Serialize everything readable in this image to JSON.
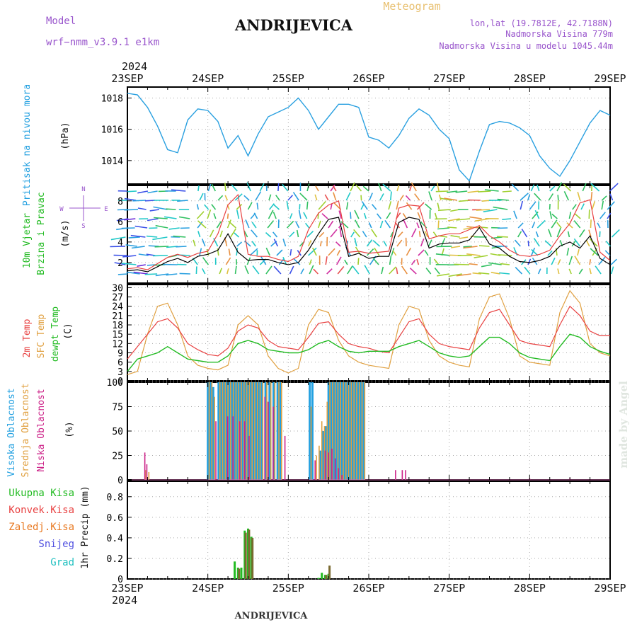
{
  "header": {
    "station": "ANDRIJEVICA",
    "product": "Meteogram",
    "model_label": "Model",
    "model_name": "wrf−nmm_v3.9.1  e1km",
    "lonlat": "lon,lat (19.7812E, 42.7188N)",
    "altitude": "Nadmorska Visina 779m",
    "model_altitude": "Nadmorska Visina u modelu 1045.44m",
    "footer": "ANDRIJEVICA",
    "credit": "made by Angel"
  },
  "colors": {
    "pressure": "#2aa0e0",
    "wind_label": "#22bb22",
    "wind_speed": "#000000",
    "gust": "#e84040",
    "t2m": "#e84040",
    "sfc": "#e0a040",
    "dewpt": "#22bb22",
    "high_cloud": "#22a0e0",
    "mid_cloud": "#e0a040",
    "low_cloud": "#cc2288",
    "total_precip": "#22bb22",
    "conv_precip": "#e84040",
    "frz_precip": "#e87820",
    "snow": "#5050e0",
    "hail": "#20c0c0",
    "compass": "#9955cc"
  },
  "chart_data": [
    {
      "type": "line",
      "panel": "pressure",
      "ylabel": "Pritisak na nivou mora",
      "unit": "(hPa)",
      "ylim": [
        1012.5,
        1018.7
      ],
      "yticks": [
        1014,
        1016,
        1018
      ],
      "x_axis_top_labels": [
        "23SEP",
        "24SEP",
        "25SEP",
        "26SEP",
        "27SEP",
        "28SEP",
        "29SEP"
      ],
      "x_year": "2024",
      "x_hours": [
        0,
        3,
        6,
        9,
        12,
        15,
        18,
        21,
        24,
        27,
        30,
        33,
        36,
        39,
        42,
        45,
        48,
        51,
        54,
        57,
        60,
        63,
        66,
        69,
        72,
        75,
        78,
        81,
        84,
        87,
        90,
        93,
        96,
        99,
        102,
        105,
        108,
        111,
        114,
        117,
        120,
        123,
        126,
        129,
        132,
        135,
        138,
        141,
        144
      ],
      "series": [
        {
          "name": "Pritisak na nivou mora",
          "values": [
            1018.3,
            1018.2,
            1017.4,
            1016.2,
            1014.7,
            1014.5,
            1016.6,
            1017.3,
            1017.2,
            1016.5,
            1014.8,
            1015.6,
            1014.3,
            1015.7,
            1016.8,
            1017.1,
            1017.4,
            1018.0,
            1017.2,
            1016.0,
            1016.8,
            1017.6,
            1017.6,
            1017.4,
            1015.5,
            1015.3,
            1014.8,
            1015.6,
            1016.7,
            1017.3,
            1016.9,
            1016.0,
            1015.4,
            1013.4,
            1012.7,
            1014.6,
            1016.3,
            1016.5,
            1016.4,
            1016.1,
            1015.6,
            1014.3,
            1013.5,
            1013.0,
            1014.0,
            1015.2,
            1016.4,
            1017.2,
            1016.9
          ]
        }
      ]
    },
    {
      "type": "line",
      "panel": "wind",
      "ylabel": "10m Vjetar Brzina i Pravac",
      "unit": "(m/s)",
      "ylim": [
        0,
        9.5
      ],
      "yticks": [
        2,
        4,
        6,
        8
      ],
      "compass": [
        "N",
        "W",
        "E",
        "S"
      ],
      "x_hours": [
        0,
        3,
        6,
        9,
        12,
        15,
        18,
        21,
        24,
        27,
        30,
        33,
        36,
        39,
        42,
        45,
        48,
        51,
        54,
        57,
        60,
        63,
        66,
        69,
        72,
        75,
        78,
        81,
        84,
        87,
        90,
        93,
        96,
        99,
        102,
        105,
        108,
        111,
        114,
        117,
        120,
        123,
        126,
        129,
        132,
        135,
        138,
        141,
        144
      ],
      "series": [
        {
          "name": "speed",
          "values": [
            1.2,
            1.3,
            1.1,
            1.6,
            2.1,
            2.4,
            2.0,
            2.6,
            2.8,
            3.2,
            4.8,
            3.0,
            2.2,
            2.3,
            2.3,
            2.0,
            1.8,
            2.0,
            3.2,
            4.8,
            6.2,
            6.4,
            2.6,
            2.9,
            2.4,
            2.6,
            2.6,
            5.9,
            6.4,
            6.2,
            3.4,
            3.8,
            3.9,
            3.9,
            4.2,
            5.4,
            3.8,
            3.4,
            2.6,
            2.1,
            2.0,
            2.2,
            2.6,
            3.6,
            4.0,
            3.4,
            4.6,
            2.4,
            1.8
          ]
        },
        {
          "name": "gust",
          "values": [
            1.4,
            1.5,
            1.3,
            1.9,
            2.5,
            2.8,
            2.5,
            2.9,
            3.1,
            4.8,
            7.6,
            8.6,
            2.8,
            2.6,
            2.6,
            2.3,
            2.1,
            2.6,
            5.2,
            6.8,
            7.6,
            8.0,
            3.0,
            3.1,
            2.9,
            3.0,
            3.1,
            7.3,
            7.6,
            7.5,
            4.3,
            4.6,
            4.8,
            4.8,
            5.2,
            5.6,
            4.6,
            4.0,
            3.2,
            2.7,
            2.6,
            2.8,
            3.2,
            4.6,
            5.8,
            7.8,
            8.1,
            3.0,
            2.2
          ]
        }
      ]
    },
    {
      "type": "line",
      "panel": "temperature",
      "ylabels": [
        "2m Temp",
        "SFC Temp",
        "dewpt Temp"
      ],
      "unit": "(C)",
      "ylim": [
        0,
        31
      ],
      "yticks": [
        0,
        3,
        6,
        9,
        12,
        15,
        18,
        21,
        24,
        27,
        30
      ],
      "x_hours": [
        0,
        3,
        6,
        9,
        12,
        15,
        18,
        21,
        24,
        27,
        30,
        33,
        36,
        39,
        42,
        45,
        48,
        51,
        54,
        57,
        60,
        63,
        66,
        69,
        72,
        75,
        78,
        81,
        84,
        87,
        90,
        93,
        96,
        99,
        102,
        105,
        108,
        111,
        114,
        117,
        120,
        123,
        126,
        129,
        132,
        135,
        138,
        141,
        144
      ],
      "series": [
        {
          "name": "2m Temp",
          "values": [
            7,
            11,
            15,
            19,
            20,
            17,
            12,
            10,
            8.5,
            8,
            10.5,
            16,
            18,
            17,
            13,
            11,
            10.5,
            10,
            14,
            18.5,
            19,
            15,
            12,
            11,
            10.5,
            9.5,
            9,
            14,
            19,
            20,
            15,
            12,
            11,
            10.5,
            10,
            17,
            22,
            23,
            18,
            13,
            12,
            11.5,
            11,
            18,
            24,
            21,
            16,
            14.5,
            14.5
          ]
        },
        {
          "name": "SFC Temp",
          "values": [
            2,
            3,
            15,
            24,
            25,
            18,
            8,
            5,
            4,
            3.5,
            5,
            18,
            21,
            18,
            8,
            4,
            2.5,
            4,
            18,
            23,
            22,
            13,
            8,
            6,
            5,
            4.5,
            4,
            18,
            24,
            23,
            13,
            8,
            6,
            5,
            4.5,
            20,
            27,
            28,
            20,
            8,
            6,
            5.5,
            5,
            22,
            29,
            25,
            12,
            9,
            8
          ]
        },
        {
          "name": "dewpt Temp",
          "values": [
            3,
            7,
            8,
            9,
            11,
            9,
            7,
            6.5,
            6,
            6,
            8,
            12,
            13,
            12,
            10,
            9.5,
            9,
            9,
            10,
            12,
            13,
            11,
            9.5,
            9,
            9.5,
            9.5,
            9.5,
            11,
            12,
            13,
            11,
            9,
            8,
            7.5,
            8,
            11,
            14,
            14,
            12,
            9,
            7.5,
            7,
            6.5,
            11,
            15,
            14,
            11,
            9.5,
            8.5
          ]
        }
      ]
    },
    {
      "type": "bar",
      "panel": "clouds",
      "ylabels": [
        "Visoka Oblacnost",
        "Srednja Oblacnost",
        "Niska Oblacnost"
      ],
      "unit": "(%)",
      "ylim": [
        0,
        100
      ],
      "yticks": [
        0,
        25,
        50,
        75,
        100
      ],
      "series": [
        {
          "name": "Visoka Oblacnost",
          "points": [
            [
              24.0,
              100
            ],
            [
              24.8,
              100
            ],
            [
              25.6,
              95
            ],
            [
              27.2,
              100
            ],
            [
              28.0,
              100
            ],
            [
              28.8,
              100
            ],
            [
              29.6,
              100
            ],
            [
              30.4,
              100
            ],
            [
              31.2,
              100
            ],
            [
              32.0,
              100
            ],
            [
              32.8,
              100
            ],
            [
              33.6,
              100
            ],
            [
              34.4,
              100
            ],
            [
              35.2,
              100
            ],
            [
              36.0,
              100
            ],
            [
              36.8,
              100
            ],
            [
              37.6,
              100
            ],
            [
              38.4,
              100
            ],
            [
              39.2,
              100
            ],
            [
              40.0,
              100
            ],
            [
              41.2,
              100
            ],
            [
              42.4,
              100
            ],
            [
              43.6,
              100
            ],
            [
              44.8,
              100
            ],
            [
              45.6,
              100
            ],
            [
              54.4,
              100
            ],
            [
              55.2,
              100
            ],
            [
              57.6,
              30
            ],
            [
              58.4,
              50
            ],
            [
              59.2,
              55
            ],
            [
              60.0,
              100
            ],
            [
              60.8,
              100
            ],
            [
              61.6,
              100
            ],
            [
              62.4,
              100
            ],
            [
              63.2,
              100
            ],
            [
              64.0,
              100
            ],
            [
              64.8,
              100
            ],
            [
              65.6,
              100
            ],
            [
              66.4,
              100
            ],
            [
              67.2,
              100
            ],
            [
              68.0,
              100
            ],
            [
              68.8,
              100
            ],
            [
              69.6,
              100
            ],
            [
              70.4,
              100
            ]
          ]
        },
        {
          "name": "Srednja Oblacnost",
          "points": [
            [
              5.4,
              10
            ],
            [
              6.4,
              8
            ],
            [
              24.4,
              100
            ],
            [
              25.2,
              100
            ],
            [
              26.0,
              85
            ],
            [
              27.6,
              100
            ],
            [
              28.4,
              100
            ],
            [
              29.2,
              100
            ],
            [
              30.0,
              100
            ],
            [
              30.8,
              100
            ],
            [
              31.6,
              100
            ],
            [
              32.4,
              100
            ],
            [
              33.2,
              100
            ],
            [
              34.0,
              100
            ],
            [
              34.8,
              100
            ],
            [
              35.6,
              100
            ],
            [
              36.4,
              100
            ],
            [
              37.2,
              100
            ],
            [
              38.0,
              100
            ],
            [
              38.8,
              100
            ],
            [
              39.6,
              100
            ],
            [
              40.4,
              100
            ],
            [
              41.6,
              100
            ],
            [
              42.8,
              100
            ],
            [
              44.0,
              100
            ],
            [
              45.2,
              100
            ],
            [
              46.0,
              100
            ],
            [
              54.8,
              75
            ],
            [
              56.4,
              25
            ],
            [
              57.2,
              35
            ],
            [
              58.0,
              60
            ],
            [
              58.8,
              55
            ],
            [
              59.6,
              80
            ],
            [
              60.4,
              100
            ],
            [
              61.2,
              100
            ],
            [
              62.0,
              100
            ],
            [
              62.8,
              100
            ],
            [
              63.6,
              100
            ],
            [
              64.4,
              100
            ],
            [
              65.2,
              100
            ],
            [
              66.0,
              100
            ],
            [
              66.8,
              100
            ],
            [
              67.6,
              100
            ],
            [
              68.4,
              100
            ],
            [
              69.2,
              100
            ],
            [
              70.0,
              100
            ],
            [
              70.8,
              100
            ]
          ]
        },
        {
          "name": "Niska Oblacnost",
          "points": [
            [
              5.2,
              28
            ],
            [
              5.8,
              16
            ],
            [
              26.4,
              60
            ],
            [
              29.9,
              65
            ],
            [
              31.5,
              65
            ],
            [
              33.5,
              60
            ],
            [
              35.0,
              60
            ],
            [
              36.3,
              45
            ],
            [
              41.0,
              85
            ],
            [
              42.0,
              80
            ],
            [
              43.5,
              75
            ],
            [
              47.0,
              45
            ],
            [
              56.0,
              20
            ],
            [
              59.0,
              30
            ],
            [
              60.0,
              28
            ],
            [
              61.0,
              32
            ],
            [
              62.0,
              22
            ],
            [
              63.0,
              12
            ],
            [
              64.0,
              5
            ],
            [
              80.0,
              10
            ],
            [
              82.0,
              10
            ],
            [
              83.0,
              10
            ],
            [
              120.0,
              2
            ],
            [
              132.0,
              2
            ]
          ]
        }
      ]
    },
    {
      "type": "bar",
      "panel": "precipitation",
      "ylabels": [
        "Ukupna Kisa",
        "Konvek.Kisa",
        "Zaledj.Kisa",
        "Snijeg",
        "Grad"
      ],
      "unit": "1hr Precip (mm)",
      "ylim": [
        0,
        0.95
      ],
      "yticks": [
        0,
        0.2,
        0.4,
        0.6,
        0.8
      ],
      "x_axis_bottom_labels": [
        "23SEP",
        "24SEP",
        "25SEP",
        "26SEP",
        "27SEP",
        "28SEP",
        "29SEP"
      ],
      "x_year": "2024",
      "series": [
        {
          "name": "Ukupna Kisa",
          "points": [
            [
              32.0,
              0.17
            ],
            [
              33.0,
              0.11
            ],
            [
              34.0,
              0.11
            ],
            [
              35.0,
              0.47
            ],
            [
              36.0,
              0.49
            ],
            [
              37.0,
              0.41
            ],
            [
              57.0,
              0.01
            ],
            [
              58.0,
              0.06
            ],
            [
              59.0,
              0.04
            ],
            [
              60.0,
              0.05
            ]
          ]
        },
        {
          "name": "Konvek.Kisa",
          "points": [
            [
              33.3,
              0.1
            ],
            [
              35.3,
              0.45
            ],
            [
              36.3,
              0.48
            ],
            [
              37.3,
              0.4
            ],
            [
              59.3,
              0.04
            ],
            [
              60.3,
              0.13
            ]
          ]
        }
      ]
    }
  ]
}
